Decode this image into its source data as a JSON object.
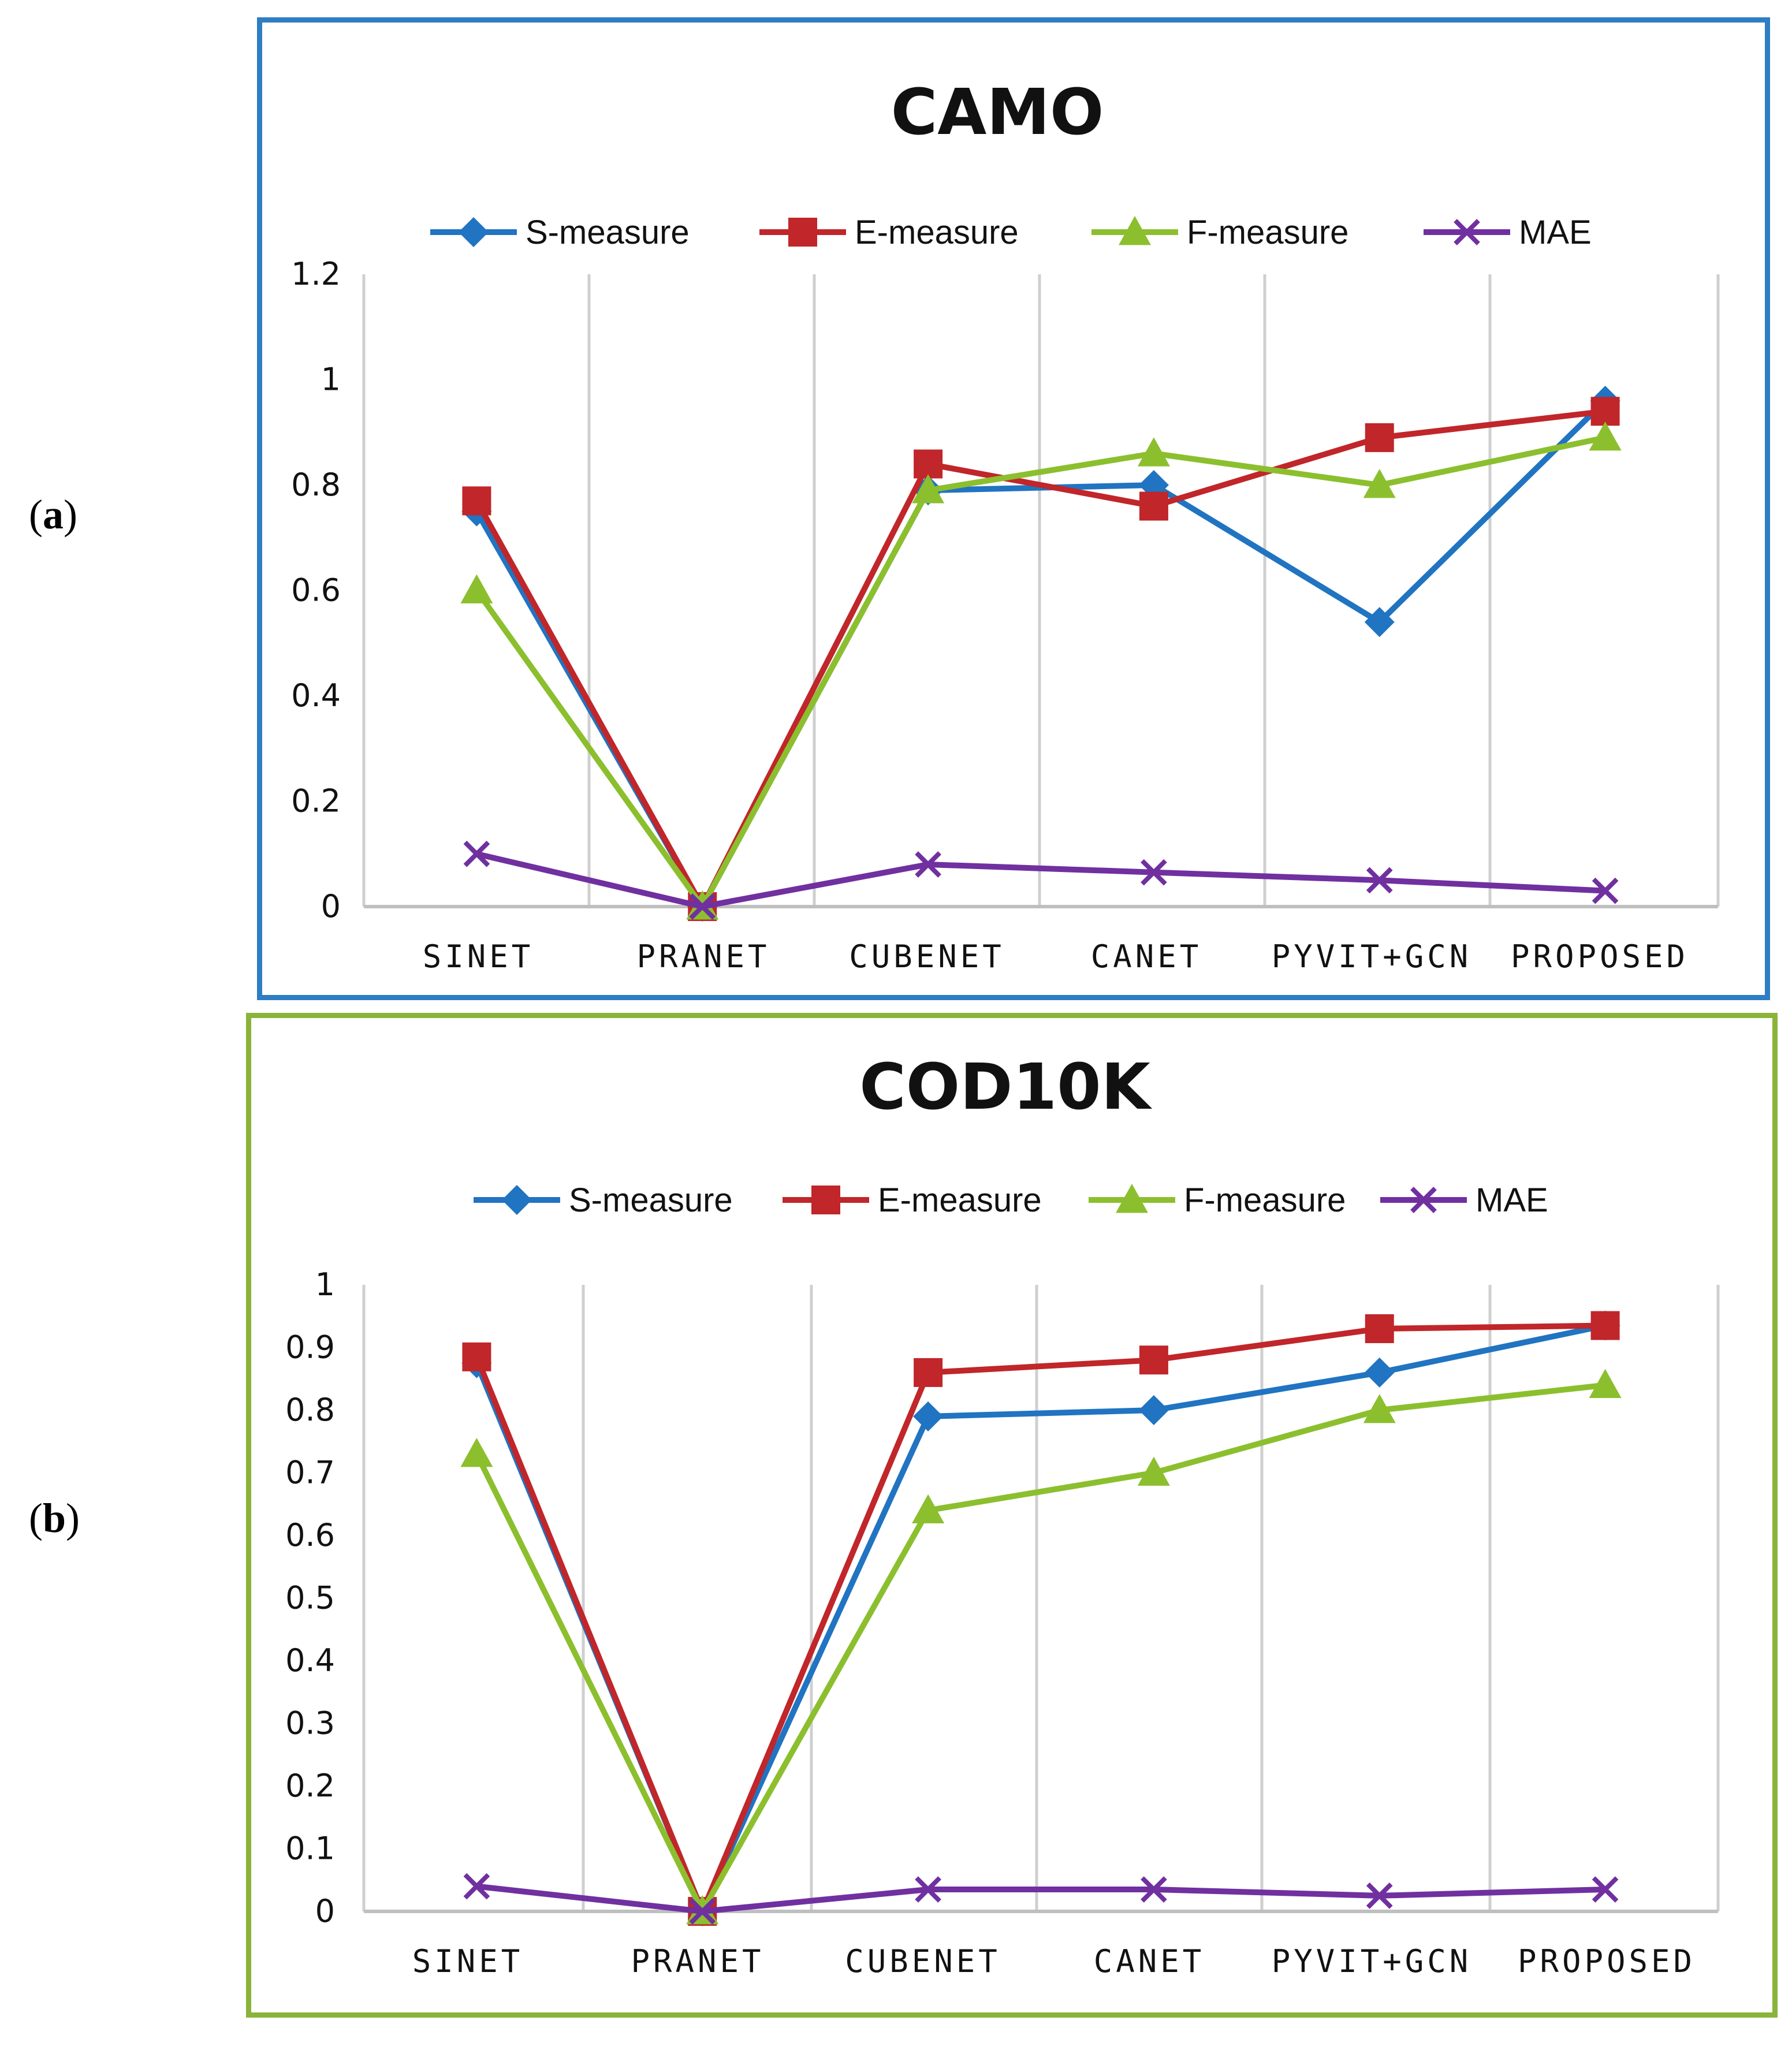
{
  "panels": [
    {
      "label": "a"
    },
    {
      "label": "b"
    }
  ],
  "chart_data": [
    {
      "type": "line",
      "title": "CAMO",
      "categories": [
        "SINET",
        "PRANET",
        "CUBENET",
        "CANET",
        "PYVIT+GCN",
        "PROPOSED"
      ],
      "series": [
        {
          "name": "S-measure",
          "color": "#2074c1",
          "marker": "diamond",
          "values": [
            0.75,
            0.0,
            0.79,
            0.8,
            0.54,
            0.96
          ]
        },
        {
          "name": "E-measure",
          "color": "#c0262a",
          "marker": "square",
          "values": [
            0.77,
            0.0,
            0.84,
            0.76,
            0.89,
            0.94
          ]
        },
        {
          "name": "F-measure",
          "color": "#8cbf2e",
          "marker": "triangle",
          "values": [
            0.6,
            0.0,
            0.79,
            0.86,
            0.8,
            0.89
          ]
        },
        {
          "name": "MAE",
          "color": "#7030a0",
          "marker": "x",
          "values": [
            0.1,
            0.0,
            0.08,
            0.065,
            0.05,
            0.03
          ]
        }
      ],
      "ylim": [
        0,
        1.2
      ],
      "yticks": [
        "0",
        "0.2",
        "0.4",
        "0.6",
        "0.8",
        "1",
        "1.2"
      ],
      "ytick_values": [
        0,
        0.2,
        0.4,
        0.6,
        0.8,
        1.0,
        1.2
      ],
      "legend": "top"
    },
    {
      "type": "line",
      "title": "COD10K",
      "categories": [
        "SINET",
        "PRANET",
        "CUBENET",
        "CANET",
        "PYVIT+GCN",
        "PROPOSED"
      ],
      "series": [
        {
          "name": "S-measure",
          "color": "#2074c1",
          "marker": "diamond",
          "values": [
            0.875,
            0.0,
            0.79,
            0.8,
            0.86,
            0.935
          ]
        },
        {
          "name": "E-measure",
          "color": "#c0262a",
          "marker": "square",
          "values": [
            0.885,
            0.0,
            0.86,
            0.88,
            0.93,
            0.935
          ]
        },
        {
          "name": "F-measure",
          "color": "#8cbf2e",
          "marker": "triangle",
          "values": [
            0.73,
            0.0,
            0.64,
            0.7,
            0.8,
            0.84
          ]
        },
        {
          "name": "MAE",
          "color": "#7030a0",
          "marker": "x",
          "values": [
            0.04,
            0.0,
            0.035,
            0.035,
            0.025,
            0.035
          ]
        }
      ],
      "ylim": [
        0,
        1
      ],
      "yticks": [
        "0",
        "0.1",
        "0.2",
        "0.3",
        "0.4",
        "0.5",
        "0.6",
        "0.7",
        "0.8",
        "0.9",
        "1"
      ],
      "ytick_values": [
        0,
        0.1,
        0.2,
        0.3,
        0.4,
        0.5,
        0.6,
        0.7,
        0.8,
        0.9,
        1.0
      ],
      "legend": "top"
    }
  ]
}
